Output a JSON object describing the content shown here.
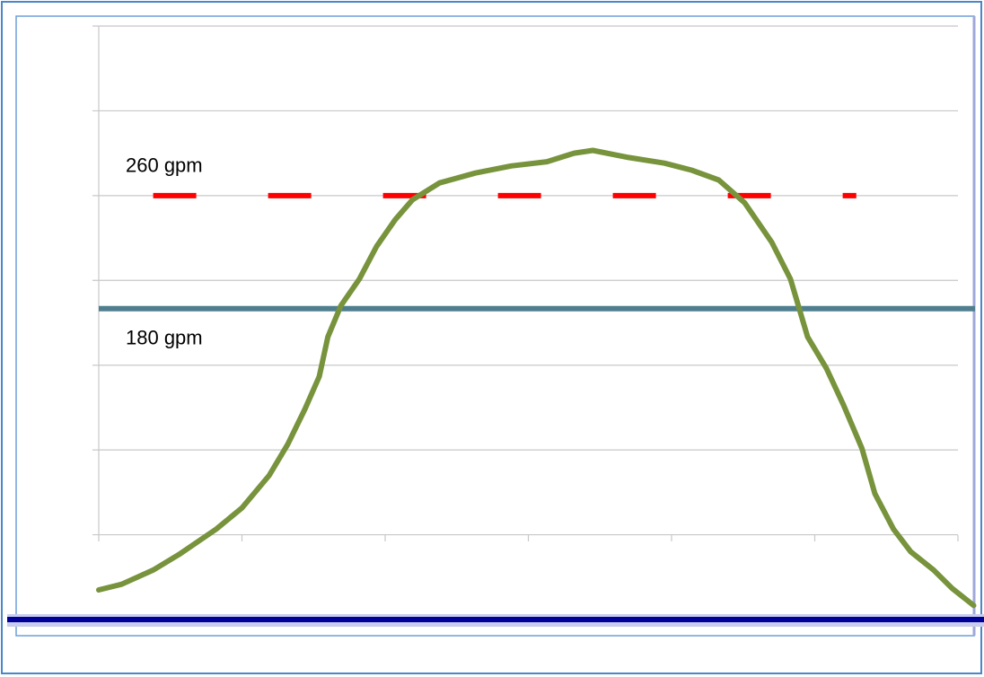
{
  "chart_data": {
    "type": "line",
    "x": [
      0,
      0.16,
      0.38,
      0.56,
      0.82,
      1.0,
      1.19,
      1.32,
      1.44,
      1.54,
      1.6,
      1.69,
      1.82,
      1.94,
      2.07,
      2.19,
      2.38,
      2.63,
      2.88,
      3.13,
      3.32,
      3.45,
      3.7,
      3.95,
      4.14,
      4.33,
      4.51,
      4.7,
      4.83,
      4.95,
      5.08,
      5.2,
      5.33,
      5.42,
      5.55,
      5.67,
      5.83,
      5.96,
      6.11
    ],
    "series": [
      {
        "color": "#77933c",
        "values": [
          -19,
          -15,
          -5,
          6,
          24,
          39,
          62,
          84,
          109,
          132,
          160,
          182,
          201,
          224,
          243,
          257,
          269,
          276,
          281,
          284,
          290,
          292,
          287,
          283,
          278,
          271,
          255,
          227,
          201,
          160,
          138,
          112,
          81,
          49,
          24,
          8,
          -5,
          -18,
          -30
        ]
      }
    ],
    "reference_lines": [
      {
        "label": "260 gpm",
        "value": 260,
        "color": "#ff0000",
        "dashed": true
      },
      {
        "label": "180 gpm",
        "value": 180,
        "color": "#4f7f8f",
        "dashed": false
      }
    ],
    "xlim": [
      0,
      6
    ],
    "xticks": [
      0,
      1,
      2,
      3,
      4,
      5,
      6
    ],
    "ylim": [
      -40,
      380
    ],
    "yticks": [
      20,
      80,
      140,
      200,
      260,
      320,
      380
    ],
    "grid": true
  }
}
